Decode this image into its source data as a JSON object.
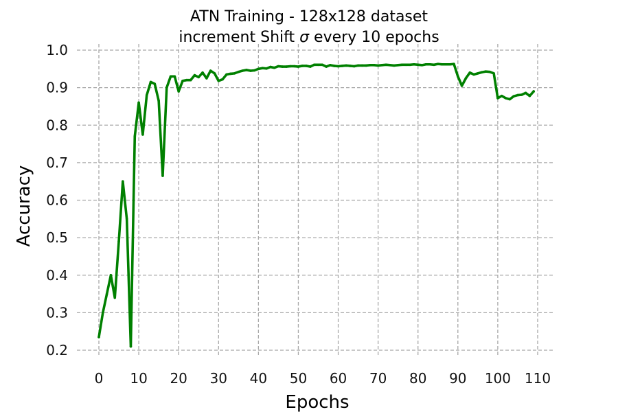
{
  "chart_data": {
    "type": "line",
    "title_line1": "ATN Training - 128x128 dataset",
    "title_line2_prefix": "increment Shift ",
    "title_line2_symbol": "σ",
    "title_line2_suffix": " every 10 epochs",
    "xlabel": "Epochs",
    "ylabel": "Accuracy",
    "xlim": [
      0,
      110
    ],
    "ylim": [
      0.2,
      1.0
    ],
    "grid": true,
    "grid_style": "dashed",
    "xticks": [
      0,
      10,
      20,
      30,
      40,
      50,
      60,
      70,
      80,
      90,
      100,
      110
    ],
    "xtick_labels": [
      "0",
      "10",
      "20",
      "30",
      "40",
      "50",
      "60",
      "70",
      "80",
      "90",
      "100",
      "110"
    ],
    "yticks": [
      0.2,
      0.3,
      0.4,
      0.5,
      0.6,
      0.7,
      0.8,
      0.9,
      1.0
    ],
    "ytick_labels": [
      "0.2",
      "0.3",
      "0.4",
      "0.5",
      "0.6",
      "0.7",
      "0.8",
      "0.9",
      "1.0"
    ],
    "series": [
      {
        "color": "#008000",
        "x": [
          0,
          1,
          2,
          3,
          4,
          5,
          6,
          7,
          8,
          9,
          10,
          11,
          12,
          13,
          14,
          15,
          16,
          17,
          18,
          19,
          20,
          21,
          22,
          23,
          24,
          25,
          26,
          27,
          28,
          29,
          30,
          31,
          32,
          33,
          34,
          35,
          36,
          37,
          38,
          39,
          40,
          41,
          42,
          43,
          44,
          45,
          46,
          47,
          48,
          49,
          50,
          51,
          52,
          53,
          54,
          55,
          56,
          57,
          58,
          59,
          60,
          61,
          62,
          63,
          64,
          65,
          66,
          67,
          68,
          69,
          70,
          71,
          72,
          73,
          74,
          75,
          76,
          77,
          78,
          79,
          80,
          81,
          82,
          83,
          84,
          85,
          86,
          87,
          88,
          89,
          90,
          91,
          92,
          93,
          94,
          95,
          96,
          97,
          98,
          99,
          100,
          101,
          102,
          103,
          104,
          105,
          106,
          107,
          108,
          109
        ],
        "values": [
          0.235,
          0.3,
          0.35,
          0.4,
          0.34,
          0.49,
          0.65,
          0.55,
          0.21,
          0.77,
          0.86,
          0.775,
          0.88,
          0.915,
          0.91,
          0.865,
          0.665,
          0.9,
          0.93,
          0.93,
          0.89,
          0.918,
          0.92,
          0.92,
          0.933,
          0.928,
          0.94,
          0.925,
          0.945,
          0.938,
          0.918,
          0.922,
          0.935,
          0.937,
          0.938,
          0.942,
          0.945,
          0.947,
          0.945,
          0.946,
          0.95,
          0.952,
          0.951,
          0.955,
          0.953,
          0.957,
          0.956,
          0.956,
          0.957,
          0.957,
          0.956,
          0.958,
          0.958,
          0.956,
          0.961,
          0.961,
          0.961,
          0.956,
          0.96,
          0.958,
          0.957,
          0.958,
          0.959,
          0.958,
          0.957,
          0.959,
          0.959,
          0.959,
          0.96,
          0.96,
          0.959,
          0.96,
          0.961,
          0.96,
          0.959,
          0.96,
          0.961,
          0.961,
          0.961,
          0.962,
          0.961,
          0.96,
          0.962,
          0.962,
          0.961,
          0.963,
          0.962,
          0.962,
          0.962,
          0.963,
          0.93,
          0.905,
          0.925,
          0.94,
          0.935,
          0.938,
          0.941,
          0.943,
          0.942,
          0.938,
          0.872,
          0.878,
          0.872,
          0.869,
          0.877,
          0.88,
          0.881,
          0.886,
          0.878,
          0.89
        ]
      }
    ]
  }
}
